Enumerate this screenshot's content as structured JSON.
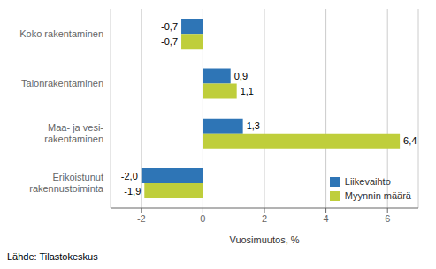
{
  "chart_data": {
    "type": "bar",
    "orientation": "horizontal",
    "categories": [
      "Erikoistunut\nrakennustoiminta",
      "Maa- ja vesi-\nrakentaminen",
      "Talonrakentaminen",
      "Koko rakentaminen"
    ],
    "series": [
      {
        "name": "Liikevaihto",
        "color": "#2E75B6",
        "values": [
          -2.0,
          1.3,
          0.9,
          -0.7
        ],
        "value_labels": [
          "-2,0",
          "1,3",
          "0,9",
          "-0,7"
        ]
      },
      {
        "name": "Myynnin määrä",
        "color": "#BFCE3B",
        "values": [
          -1.9,
          6.4,
          1.1,
          -0.7
        ],
        "value_labels": [
          "-1,9",
          "6,4",
          "1,1",
          "-0,7"
        ]
      }
    ],
    "xlabel": "Vuosimuutos, %",
    "xlim": [
      -3,
      7
    ],
    "xticks": [
      -2,
      0,
      2,
      4,
      6
    ],
    "grid": true,
    "legend": "lower right",
    "data_labels": true,
    "annotations": [
      "Lähde: Tilastokeskus"
    ]
  }
}
